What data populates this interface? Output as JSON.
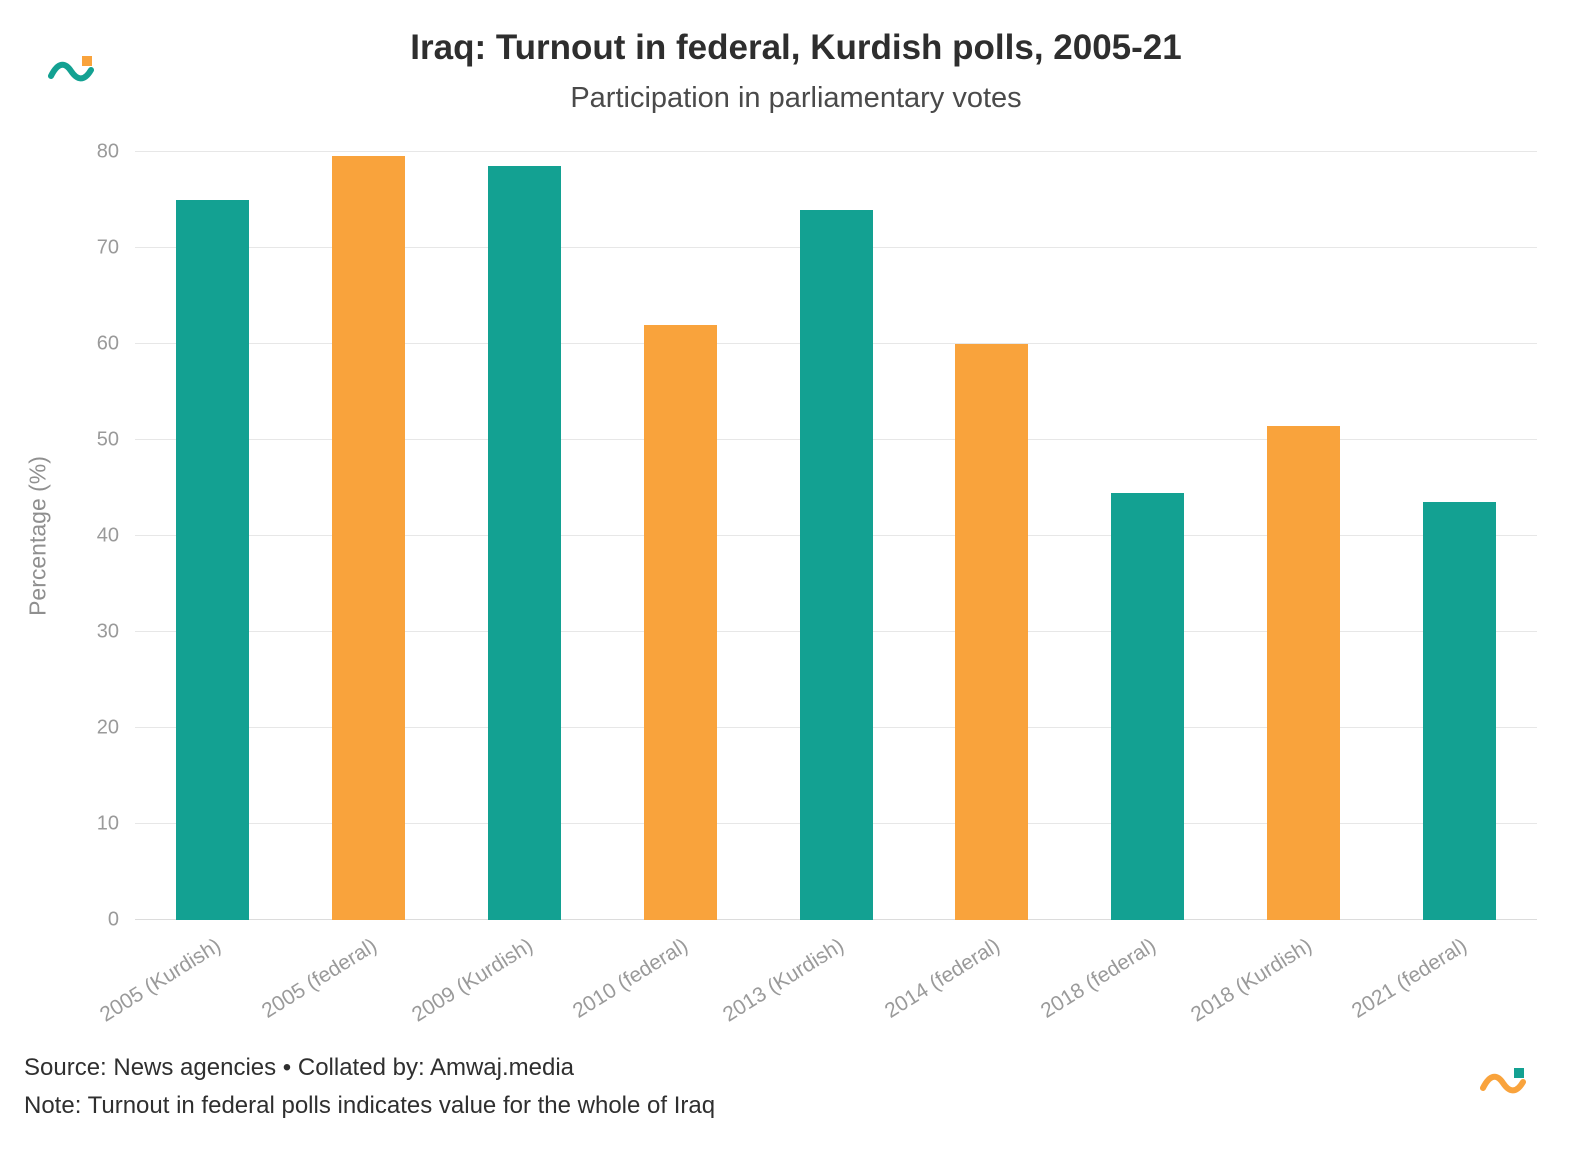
{
  "header": {
    "title": "Iraq: Turnout in federal, Kurdish polls, 2005-21",
    "subtitle": "Participation in parliamentary votes"
  },
  "chart_data": {
    "type": "bar",
    "categories": [
      "2005 (Kurdish)",
      "2005 (federal)",
      "2009 (Kurdish)",
      "2010 (federal)",
      "2013 (Kurdish)",
      "2014 (federal)",
      "2018 (federal)",
      "2018 (Kurdish)",
      "2021 (federal)"
    ],
    "values": [
      75,
      79.6,
      78.5,
      62,
      74,
      60,
      44.5,
      51.5,
      43.5
    ],
    "bar_color_keys": [
      "teal",
      "orange",
      "teal",
      "orange",
      "teal",
      "orange",
      "teal",
      "orange",
      "teal"
    ],
    "title": "Iraq: Turnout in federal, Kurdish polls, 2005-21",
    "subtitle": "Participation in parliamentary votes",
    "xlabel": "",
    "ylabel": "Percentage (%)",
    "ylim": [
      0,
      80
    ],
    "yticks": [
      0,
      10,
      20,
      30,
      40,
      50,
      60,
      70,
      80
    ],
    "grid": "horizontal",
    "legend": "none"
  },
  "colors": {
    "teal": "#13A192",
    "orange": "#F9A33C"
  },
  "footer": {
    "source": "Source: News agencies • Collated by: Amwaj.media",
    "note": "Note: Turnout in federal polls indicates value for the whole of Iraq"
  }
}
